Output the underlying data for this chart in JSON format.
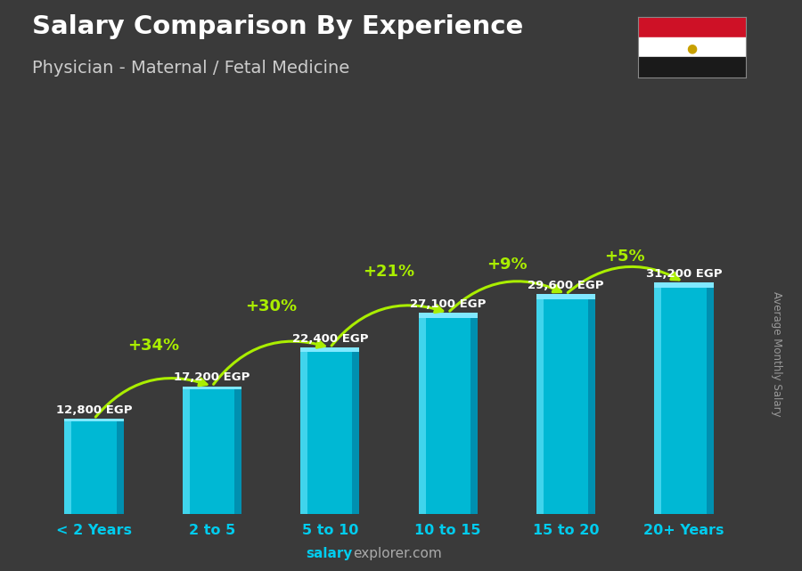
{
  "title_line1": "Salary Comparison By Experience",
  "title_line2": "Physician - Maternal / Fetal Medicine",
  "categories": [
    "< 2 Years",
    "2 to 5",
    "5 to 10",
    "10 to 15",
    "15 to 20",
    "20+ Years"
  ],
  "values": [
    12800,
    17200,
    22400,
    27100,
    29600,
    31200
  ],
  "salary_labels": [
    "12,800 EGP",
    "17,200 EGP",
    "22,400 EGP",
    "27,100 EGP",
    "29,600 EGP",
    "31,200 EGP"
  ],
  "pct_labels": [
    "+34%",
    "+30%",
    "+21%",
    "+9%",
    "+5%"
  ],
  "bar_color_main": "#00b8d4",
  "bar_color_left": "#40d4ec",
  "bar_color_right": "#0090b0",
  "bar_color_top": "#80e8ff",
  "background_color": "#3a3a3a",
  "title_color": "#ffffff",
  "subtitle_color": "#cccccc",
  "salary_label_color": "#ffffff",
  "pct_color": "#aaee00",
  "xlabel_color": "#00ccee",
  "footer_bold": "salary",
  "footer_normal": "explorer.com",
  "footer_color": "#aaaaaa",
  "ylabel_text": "Average Monthly Salary",
  "ylim": [
    0,
    40000
  ],
  "bar_width": 0.5
}
